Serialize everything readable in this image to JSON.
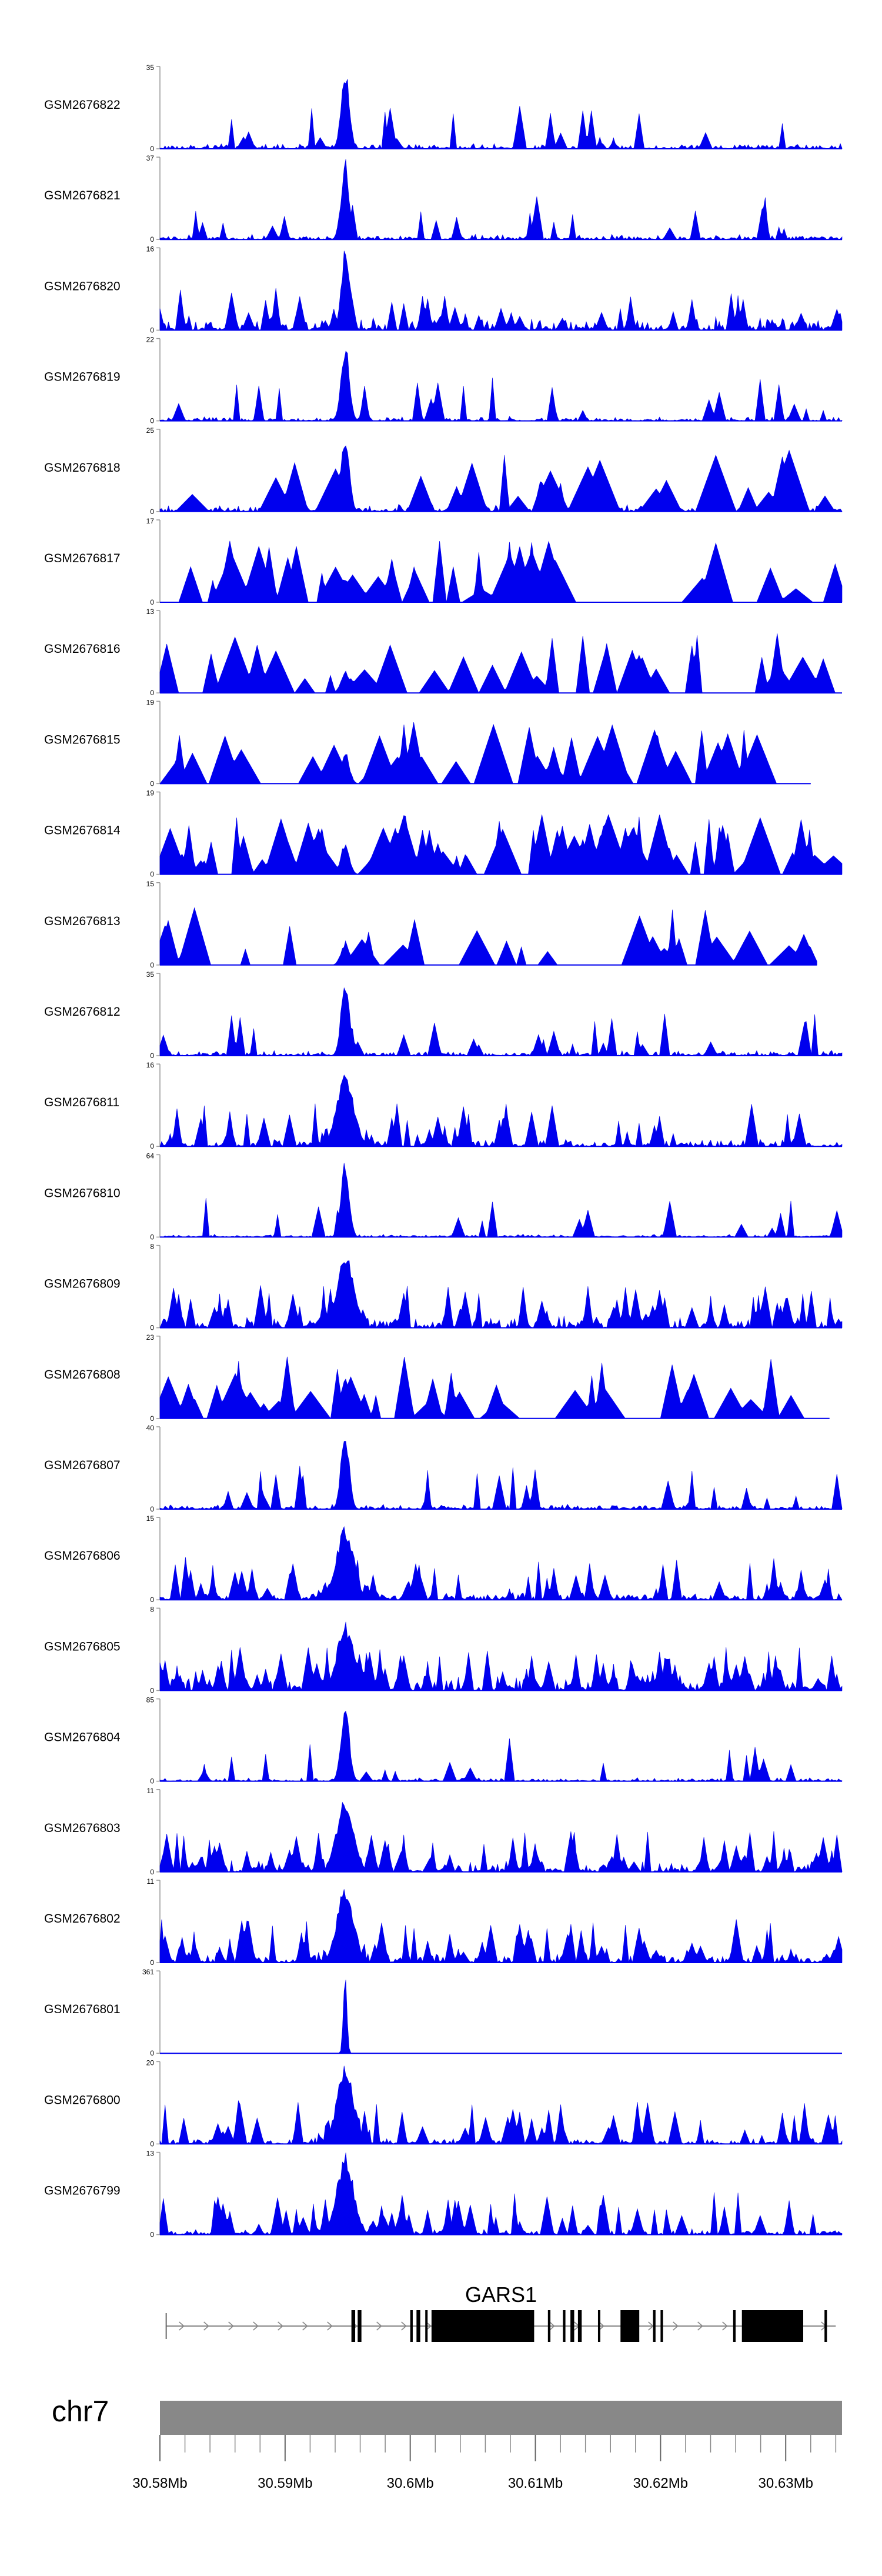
{
  "chart_data": {
    "type": "area",
    "title": "",
    "x_unit": "Mb",
    "x_range": [
      30.58,
      30.6345
    ],
    "series_color": "#0000ee",
    "peak_center_mb": 30.5948,
    "tracks": [
      {
        "name": "GSM2676822",
        "ymax": "35",
        "ylim": [
          0,
          35
        ],
        "peak": 1.0,
        "style": "peaked",
        "noise": 0.07,
        "spikes": 20
      },
      {
        "name": "GSM2676821",
        "ymax": "37",
        "ylim": [
          0,
          37
        ],
        "peak": 1.0,
        "style": "peaked",
        "noise": 0.07,
        "spikes": 20
      },
      {
        "name": "GSM2676820",
        "ymax": "16",
        "ylim": [
          0,
          16
        ],
        "peak": 1.0,
        "style": "peaked",
        "noise": 0.18,
        "spikes": 40
      },
      {
        "name": "GSM2676819",
        "ymax": "22",
        "ylim": [
          0,
          22
        ],
        "peak": 1.0,
        "style": "peaked",
        "noise": 0.06,
        "spikes": 20
      },
      {
        "name": "GSM2676818",
        "ymax": "25",
        "ylim": [
          0,
          25
        ],
        "peak": 1.0,
        "style": "sparse",
        "noise": 0.1,
        "spikes": 26
      },
      {
        "name": "GSM2676817",
        "ymax": "17",
        "ylim": [
          0,
          17
        ],
        "peak": 0.3,
        "style": "sparse",
        "noise": 0.0,
        "spikes": 44
      },
      {
        "name": "GSM2676816",
        "ymax": "13",
        "ylim": [
          0,
          13
        ],
        "peak": 0.3,
        "style": "sparse",
        "noise": 0.0,
        "spikes": 36
      },
      {
        "name": "GSM2676815",
        "ymax": "19",
        "ylim": [
          0,
          19
        ],
        "peak": 0.4,
        "style": "sparse",
        "noise": 0.0,
        "spikes": 40,
        "end_mb": 30.632
      },
      {
        "name": "GSM2676814",
        "ymax": "19",
        "ylim": [
          0,
          19
        ],
        "peak": 0.4,
        "style": "sparse",
        "noise": 0.0,
        "spikes": 70
      },
      {
        "name": "GSM2676813",
        "ymax": "15",
        "ylim": [
          0,
          15
        ],
        "peak": 0.3,
        "style": "sparse",
        "noise": 0.0,
        "spikes": 26,
        "end_mb": 30.6325
      },
      {
        "name": "GSM2676812",
        "ymax": "35",
        "ylim": [
          0,
          35
        ],
        "peak": 1.0,
        "style": "peaked",
        "noise": 0.07,
        "spikes": 24
      },
      {
        "name": "GSM2676811",
        "ymax": "16",
        "ylim": [
          0,
          16
        ],
        "peak": 0.95,
        "style": "broad",
        "noise": 0.1,
        "spikes": 40
      },
      {
        "name": "GSM2676810",
        "ymax": "64",
        "ylim": [
          0,
          64
        ],
        "peak": 0.95,
        "style": "peaked",
        "noise": 0.04,
        "spikes": 16
      },
      {
        "name": "GSM2676809",
        "ymax": "8",
        "ylim": [
          0,
          8
        ],
        "peak": 0.95,
        "style": "broad",
        "noise": 0.15,
        "spikes": 60
      },
      {
        "name": "GSM2676808",
        "ymax": "23",
        "ylim": [
          0,
          23
        ],
        "peak": 0.5,
        "style": "sparse",
        "noise": 0.0,
        "spikes": 40,
        "end_mb": 30.6335
      },
      {
        "name": "GSM2676807",
        "ymax": "40",
        "ylim": [
          0,
          40
        ],
        "peak": 1.0,
        "style": "peaked",
        "noise": 0.07,
        "spikes": 24
      },
      {
        "name": "GSM2676806",
        "ymax": "15",
        "ylim": [
          0,
          15
        ],
        "peak": 0.95,
        "style": "broad",
        "noise": 0.1,
        "spikes": 50
      },
      {
        "name": "GSM2676805",
        "ymax": "8",
        "ylim": [
          0,
          8
        ],
        "peak": 0.85,
        "style": "broad",
        "noise": 0.2,
        "spikes": 90
      },
      {
        "name": "GSM2676804",
        "ymax": "85",
        "ylim": [
          0,
          85
        ],
        "peak": 1.0,
        "style": "peaked",
        "noise": 0.05,
        "spikes": 18
      },
      {
        "name": "GSM2676803",
        "ymax": "11",
        "ylim": [
          0,
          11
        ],
        "peak": 0.95,
        "style": "broad",
        "noise": 0.15,
        "spikes": 70
      },
      {
        "name": "GSM2676802",
        "ymax": "11",
        "ylim": [
          0,
          11
        ],
        "peak": 0.95,
        "style": "broad",
        "noise": 0.12,
        "spikes": 60
      },
      {
        "name": "GSM2676801",
        "ymax": "361",
        "ylim": [
          0,
          361
        ],
        "peak": 1.0,
        "style": "narrow",
        "noise": 0.0,
        "spikes": 0
      },
      {
        "name": "GSM2676800",
        "ymax": "20",
        "ylim": [
          0,
          20
        ],
        "peak": 1.0,
        "style": "broad",
        "noise": 0.08,
        "spikes": 50
      },
      {
        "name": "GSM2676799",
        "ymax": "13",
        "ylim": [
          0,
          13
        ],
        "peak": 1.0,
        "style": "broad",
        "noise": 0.08,
        "spikes": 55
      }
    ],
    "y_min_label": "0",
    "gene": {
      "name": "GARS1",
      "strand": "+",
      "start_mb": 30.5805,
      "end_mb": 30.634,
      "exons": [
        [
          30.5953,
          30.5956
        ],
        [
          30.5958,
          30.5961
        ],
        [
          30.6,
          30.6002
        ],
        [
          30.6005,
          30.6008
        ],
        [
          30.6012,
          30.6013
        ],
        [
          30.6017,
          30.6099
        ],
        [
          30.611,
          30.6112
        ],
        [
          30.6122,
          30.6124
        ],
        [
          30.6128,
          30.6131
        ],
        [
          30.6134,
          30.6137
        ],
        [
          30.615,
          30.6151
        ],
        [
          30.6168,
          30.6183
        ],
        [
          30.6194,
          30.6196
        ],
        [
          30.62,
          30.6202
        ],
        [
          30.6258,
          30.626
        ],
        [
          30.6265,
          30.6314
        ],
        [
          30.6331,
          30.6333
        ]
      ]
    },
    "chromosome": {
      "label": "chr7",
      "ticks": [
        30.58,
        30.59,
        30.6,
        30.61,
        30.62,
        30.63
      ],
      "tick_labels": [
        "30.58Mb",
        "30.59Mb",
        "30.6Mb",
        "30.61Mb",
        "30.62Mb",
        "30.63Mb"
      ],
      "minor_step_mb": 0.002
    }
  }
}
